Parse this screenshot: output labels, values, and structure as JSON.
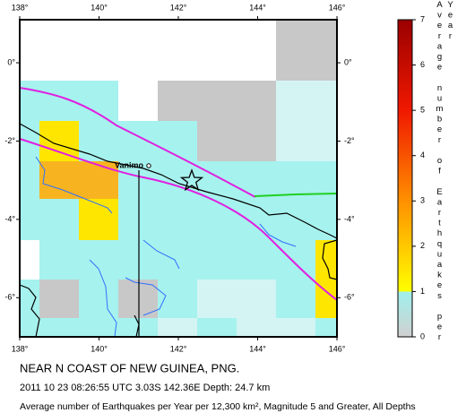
{
  "map": {
    "xlim": [
      138,
      146
    ],
    "ylim": [
      -7,
      1.1
    ],
    "xticks": [
      {
        "value": 138,
        "label": "138°"
      },
      {
        "value": 140,
        "label": "140°"
      },
      {
        "value": 142,
        "label": "142°"
      },
      {
        "value": 144,
        "label": "144°"
      },
      {
        "value": 146,
        "label": "146°"
      }
    ],
    "yticks": [
      {
        "value": 0,
        "label": "0°"
      },
      {
        "value": -2,
        "label": "-2°"
      },
      {
        "value": -4,
        "label": "-4°"
      },
      {
        "value": -6,
        "label": "-6°"
      }
    ],
    "place_label": "Vanimo"
  },
  "colorbar": {
    "label": "Average number of Earthquakes per Year",
    "lim": [
      0,
      7
    ],
    "ticks": [
      0,
      1,
      2,
      3,
      4,
      5,
      6,
      7
    ]
  },
  "title": "NEAR N COAST OF NEW GUINEA, PNG.",
  "event": "2011 10 23 08:26:55 UTC 3.03S 142.36E Depth: 24.7 km",
  "caption": "Average number of Earthquakes per Year per 12,300 km², Magnitude 5 and Greater, All Depths"
}
